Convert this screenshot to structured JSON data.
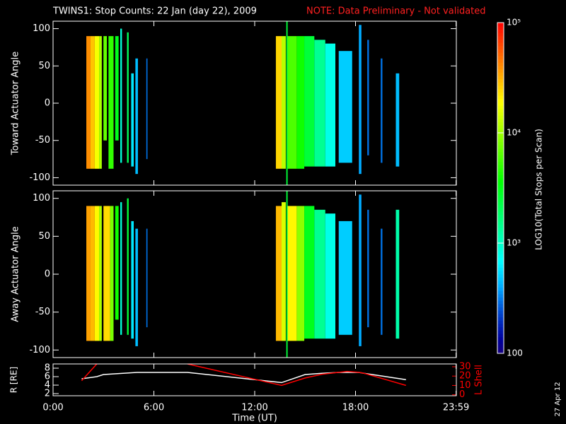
{
  "title": "TWINS1: Stop Counts: 22 Jan (day  22), 2009",
  "note": "NOTE: Data Preliminary - Not validated",
  "date": "27 Apr 12",
  "time_axis": {
    "label": "Time (UT)",
    "xlim": [
      0,
      24
    ],
    "xticks": [
      {
        "value": 0,
        "label": "0:00"
      },
      {
        "value": 6,
        "label": "6:00"
      },
      {
        "value": 12,
        "label": "12:00"
      },
      {
        "value": 18,
        "label": "18:00"
      },
      {
        "value": 23.983,
        "label": "23:59"
      }
    ]
  },
  "colorbar": {
    "label": "LOG10(Total Stops per Scan)",
    "log": true,
    "clim": [
      100,
      100000
    ],
    "ticks": [
      100,
      {
        "value": 1000,
        "label": "10³"
      },
      {
        "value": 10000,
        "label": "10⁴"
      },
      {
        "value": 100000,
        "label": "10⁵"
      }
    ]
  },
  "chart_data": [
    {
      "type": "spectrogram",
      "ylabel": "Toward Actuator Angle",
      "ylim": [
        -110,
        110
      ],
      "yticks": [
        -100,
        -50,
        0,
        50,
        100
      ],
      "strips": [
        {
          "x": [
            1.98,
            2.23
          ],
          "y": [
            -88,
            90
          ],
          "value": 40000
        },
        {
          "x": [
            2.23,
            2.48
          ],
          "y": [
            -88,
            90
          ],
          "value": 28000
        },
        {
          "x": [
            2.48,
            2.74
          ],
          "y": [
            -88,
            90
          ],
          "value": 18000
        },
        {
          "x": [
            2.74,
            2.9
          ],
          "y": [
            -88,
            90
          ],
          "value": 11000
        },
        {
          "x": [
            3.0,
            3.2
          ],
          "y": [
            -50,
            90
          ],
          "value": 7000
        },
        {
          "x": [
            3.3,
            3.6
          ],
          "y": [
            -88,
            90
          ],
          "value": 5000
        },
        {
          "x": [
            3.7,
            3.9
          ],
          "y": [
            -50,
            90
          ],
          "value": 3000
        },
        {
          "x": [
            4.0,
            4.1
          ],
          "y": [
            -80,
            100
          ],
          "value": 900
        },
        {
          "x": [
            4.4,
            4.5
          ],
          "y": [
            -80,
            95
          ],
          "value": 2000
        },
        {
          "x": [
            4.65,
            4.8
          ],
          "y": [
            -85,
            40
          ],
          "value": 600
        },
        {
          "x": [
            4.9,
            5.05
          ],
          "y": [
            -95,
            60
          ],
          "value": 450
        },
        {
          "x": [
            5.55,
            5.62
          ],
          "y": [
            -75,
            60
          ],
          "value": 300
        },
        {
          "x": [
            13.26,
            13.6
          ],
          "y": [
            -88,
            90
          ],
          "value": 25000
        },
        {
          "x": [
            13.6,
            13.85
          ],
          "y": [
            -88,
            90
          ],
          "value": 12000
        },
        {
          "x": [
            13.88,
            13.96
          ],
          "y": [
            -110,
            110
          ],
          "value": 2500
        },
        {
          "x": [
            13.96,
            14.5
          ],
          "y": [
            -88,
            90
          ],
          "value": 6000
        },
        {
          "x": [
            14.5,
            14.95
          ],
          "y": [
            -88,
            90
          ],
          "value": 4000
        },
        {
          "x": [
            14.95,
            15.55
          ],
          "y": [
            -85,
            90
          ],
          "value": 2500
        },
        {
          "x": [
            15.55,
            16.2
          ],
          "y": [
            -85,
            85
          ],
          "value": 1400
        },
        {
          "x": [
            16.2,
            16.8
          ],
          "y": [
            -85,
            80
          ],
          "value": 800
        },
        {
          "x": [
            17.0,
            17.8
          ],
          "y": [
            -80,
            70
          ],
          "value": 500
        },
        {
          "x": [
            18.2,
            18.35
          ],
          "y": [
            -95,
            105
          ],
          "value": 400
        },
        {
          "x": [
            18.7,
            18.8
          ],
          "y": [
            -70,
            85
          ],
          "value": 300
        },
        {
          "x": [
            19.5,
            19.6
          ],
          "y": [
            -80,
            60
          ],
          "value": 300
        },
        {
          "x": [
            20.4,
            20.6
          ],
          "y": [
            -85,
            40
          ],
          "value": 450
        }
      ]
    },
    {
      "type": "spectrogram",
      "ylabel": "Away Actuator Angle",
      "ylim": [
        -110,
        110
      ],
      "yticks": [
        -100,
        -50,
        0,
        50,
        100
      ],
      "strips": [
        {
          "x": [
            1.98,
            2.23
          ],
          "y": [
            -88,
            90
          ],
          "value": 35000
        },
        {
          "x": [
            2.23,
            2.48
          ],
          "y": [
            -88,
            90
          ],
          "value": 30000
        },
        {
          "x": [
            2.48,
            2.74
          ],
          "y": [
            -88,
            90
          ],
          "value": 20000
        },
        {
          "x": [
            2.74,
            2.9
          ],
          "y": [
            -88,
            90
          ],
          "value": 11000
        },
        {
          "x": [
            3.0,
            3.4
          ],
          "y": [
            -88,
            90
          ],
          "value": 24000
        },
        {
          "x": [
            3.4,
            3.6
          ],
          "y": [
            -88,
            90
          ],
          "value": 8000
        },
        {
          "x": [
            3.7,
            3.9
          ],
          "y": [
            -60,
            90
          ],
          "value": 4000
        },
        {
          "x": [
            4.0,
            4.1
          ],
          "y": [
            -80,
            95
          ],
          "value": 900
        },
        {
          "x": [
            4.4,
            4.5
          ],
          "y": [
            -80,
            100
          ],
          "value": 2500
        },
        {
          "x": [
            4.65,
            4.8
          ],
          "y": [
            -85,
            70
          ],
          "value": 600
        },
        {
          "x": [
            4.9,
            5.05
          ],
          "y": [
            -95,
            60
          ],
          "value": 450
        },
        {
          "x": [
            5.55,
            5.62
          ],
          "y": [
            -70,
            60
          ],
          "value": 300
        },
        {
          "x": [
            13.26,
            13.6
          ],
          "y": [
            -88,
            90
          ],
          "value": 30000
        },
        {
          "x": [
            13.6,
            13.85
          ],
          "y": [
            -88,
            95
          ],
          "value": 15000
        },
        {
          "x": [
            13.88,
            13.96
          ],
          "y": [
            -110,
            110
          ],
          "value": 2500
        },
        {
          "x": [
            13.96,
            14.5
          ],
          "y": [
            -88,
            90
          ],
          "value": 20000
        },
        {
          "x": [
            14.5,
            14.95
          ],
          "y": [
            -88,
            90
          ],
          "value": 9000
        },
        {
          "x": [
            14.95,
            15.55
          ],
          "y": [
            -85,
            90
          ],
          "value": 3000
        },
        {
          "x": [
            15.55,
            16.2
          ],
          "y": [
            -85,
            85
          ],
          "value": 1400
        },
        {
          "x": [
            16.2,
            16.8
          ],
          "y": [
            -85,
            80
          ],
          "value": 800
        },
        {
          "x": [
            17.0,
            17.8
          ],
          "y": [
            -80,
            70
          ],
          "value": 500
        },
        {
          "x": [
            18.2,
            18.35
          ],
          "y": [
            -95,
            105
          ],
          "value": 400
        },
        {
          "x": [
            18.7,
            18.8
          ],
          "y": [
            -70,
            85
          ],
          "value": 300
        },
        {
          "x": [
            19.5,
            19.6
          ],
          "y": [
            -80,
            60
          ],
          "value": 300
        },
        {
          "x": [
            20.4,
            20.6
          ],
          "y": [
            -85,
            85
          ],
          "value": 1200
        }
      ]
    },
    {
      "type": "line",
      "ylabel": "R [RE]",
      "y2label": "L Shell",
      "ylim": [
        1.5,
        9
      ],
      "yticks": [
        2,
        4,
        6,
        8
      ],
      "y2lim": [
        -1,
        33
      ],
      "y2ticks": [
        0,
        10,
        20,
        30
      ],
      "y2color": "#ff0000",
      "x": [
        1.7,
        2.6,
        3,
        5,
        8,
        13.6,
        15,
        16,
        17,
        17.5,
        18.2,
        18.5,
        21
      ],
      "series": [
        {
          "color": "#ffffff",
          "values": [
            5.5,
            6,
            6.5,
            7,
            7,
            4.6,
            6.5,
            6.8,
            7,
            7,
            7,
            6.8,
            5.3
          ]
        },
        {
          "color": "#ff0000",
          "axis": "y2",
          "values": [
            15,
            33,
            null,
            null,
            33,
            10,
            18,
            22,
            24,
            25,
            24,
            23,
            10
          ]
        }
      ]
    }
  ]
}
